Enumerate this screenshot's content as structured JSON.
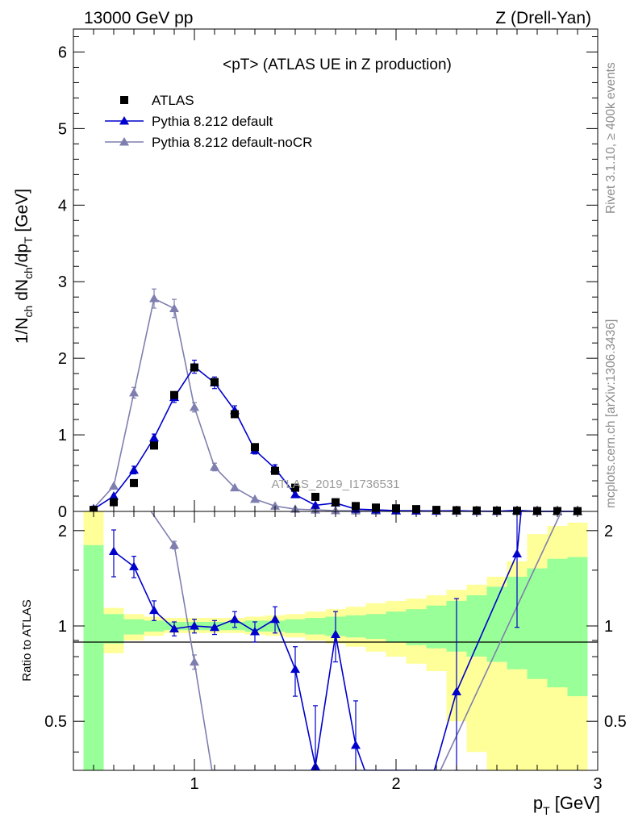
{
  "header": {
    "energy_label": "13000 GeV pp",
    "process_label": "Z (Drell-Yan)"
  },
  "side_labels": {
    "rivet": "Rivet 3.1.10, ≥ 400k events",
    "mcplots": "mcplots.cern.ch [arXiv:1306.3436]"
  },
  "chart_data": [
    {
      "type": "scatter",
      "panel": "main",
      "title": "<pT> (ATLAS UE in Z production)",
      "watermark": "ATLAS_2019_I1736531",
      "xlabel_main": "p",
      "xlabel_sub": "T",
      "xlabel_unit": " [GeV]",
      "ylabel_parts": [
        "1/N",
        "ch",
        " dN",
        "ch",
        "/dp",
        "T",
        " [GeV]"
      ],
      "xlim": [
        0.4,
        3.0
      ],
      "ylim": [
        0,
        6.3
      ],
      "xticks": [
        1,
        2,
        3
      ],
      "yticks": [
        0,
        1,
        2,
        3,
        4,
        5,
        6
      ],
      "x": [
        0.5,
        0.6,
        0.7,
        0.8,
        0.9,
        1.0,
        1.1,
        1.2,
        1.3,
        1.4,
        1.5,
        1.6,
        1.7,
        1.8,
        1.9,
        2.0,
        2.1,
        2.2,
        2.3,
        2.4,
        2.5,
        2.6,
        2.7,
        2.8,
        2.9
      ],
      "legend": [
        "ATLAS",
        "Pythia 8.212 default",
        "Pythia 8.212 default-noCR"
      ],
      "series": [
        {
          "name": "ATLAS",
          "color": "#000000",
          "marker": "square",
          "values": [
            0.02,
            0.12,
            0.37,
            0.86,
            1.52,
            1.88,
            1.69,
            1.27,
            0.84,
            0.53,
            0.31,
            0.19,
            0.12,
            0.07,
            0.05,
            0.04,
            0.03,
            0.02,
            0.015,
            0.012,
            0.01,
            0.008,
            0.006,
            0.005,
            0.004
          ]
        },
        {
          "name": "Pythia 8.212 default",
          "color": "#0000cc",
          "marker": "triangle",
          "values": [
            0.03,
            0.2,
            0.54,
            0.96,
            1.49,
            1.89,
            1.68,
            1.32,
            0.8,
            0.56,
            0.22,
            0.08,
            0.11,
            0.03,
            0.02,
            0.01,
            0.008,
            0.006,
            0.009,
            0.003,
            0.002,
            0.013,
            0.001,
            0.001,
            0.0
          ]
        },
        {
          "name": "Pythia 8.212 default-noCR",
          "color": "#7f7faf",
          "marker": "triangle",
          "values": [
            0.04,
            0.33,
            1.55,
            2.78,
            2.65,
            1.36,
            0.58,
            0.31,
            0.16,
            0.07,
            0.03,
            0.02,
            0.01,
            0.008,
            0.006,
            0.005,
            0.004,
            0.003,
            0.002,
            0.002,
            0.001,
            0.001,
            0.001,
            0.001,
            0.001
          ]
        }
      ]
    },
    {
      "type": "line",
      "panel": "ratio",
      "ylabel": "Ratio to ATLAS",
      "xlim": [
        0.4,
        3.0
      ],
      "ylim": [
        0.35,
        2.3
      ],
      "yticks": [
        0.5,
        1,
        2
      ],
      "yticklabels": [
        "0.5",
        "1",
        "2"
      ],
      "xticks": [
        1,
        2,
        3
      ],
      "band_edges": [
        0.45,
        0.55,
        0.65,
        0.75,
        0.85,
        0.95,
        1.05,
        1.15,
        1.25,
        1.35,
        1.45,
        1.55,
        1.65,
        1.75,
        1.85,
        1.95,
        2.05,
        2.15,
        2.25,
        2.35,
        2.45,
        2.55,
        2.65,
        2.75,
        2.85,
        2.95
      ],
      "band_inner_lo": [
        0.3,
        0.88,
        0.94,
        0.96,
        0.97,
        0.97,
        0.97,
        0.97,
        0.96,
        0.96,
        0.95,
        0.94,
        0.93,
        0.92,
        0.91,
        0.89,
        0.87,
        0.85,
        0.83,
        0.8,
        0.77,
        0.73,
        0.68,
        0.64,
        0.6
      ],
      "band_inner_hi": [
        1.8,
        1.09,
        1.05,
        1.04,
        1.03,
        1.03,
        1.03,
        1.03,
        1.04,
        1.04,
        1.05,
        1.06,
        1.07,
        1.08,
        1.09,
        1.11,
        1.13,
        1.16,
        1.2,
        1.25,
        1.33,
        1.43,
        1.52,
        1.63,
        1.65
      ],
      "band_outer_lo": [
        0.3,
        0.82,
        0.9,
        0.93,
        0.95,
        0.95,
        0.95,
        0.95,
        0.94,
        0.93,
        0.92,
        0.9,
        0.88,
        0.86,
        0.83,
        0.8,
        0.76,
        0.72,
        0.5,
        0.4,
        0.35,
        0.35,
        0.35,
        0.35,
        0.35
      ],
      "band_outer_hi": [
        2.3,
        1.14,
        1.09,
        1.07,
        1.06,
        1.06,
        1.06,
        1.06,
        1.07,
        1.08,
        1.09,
        1.11,
        1.13,
        1.15,
        1.18,
        1.2,
        1.22,
        1.25,
        1.3,
        1.35,
        1.43,
        1.6,
        1.95,
        2.07,
        2.12
      ],
      "series": [
        {
          "name": "Pythia 8.212 default",
          "color": "#0000cc",
          "x": [
            0.6,
            0.7,
            0.8,
            0.9,
            1.0,
            1.1,
            1.2,
            1.3,
            1.4,
            1.5,
            1.6,
            1.7,
            1.8,
            2.3,
            2.6
          ],
          "values": [
            1.72,
            1.54,
            1.12,
            0.98,
            1.0,
            0.99,
            1.05,
            0.96,
            1.05,
            0.73,
            0.36,
            0.94,
            0.42,
            0.62,
            1.69
          ],
          "err": [
            0.29,
            0.12,
            0.08,
            0.05,
            0.05,
            0.05,
            0.06,
            0.07,
            0.1,
            0.13,
            0.2,
            0.17,
            0.16,
            0.6,
            0.7
          ],
          "line_x": [
            0.6,
            0.7,
            0.8,
            0.9,
            1.0,
            1.1,
            1.2,
            1.3,
            1.4,
            1.5,
            1.6,
            1.7,
            1.8,
            1.845,
            2.19,
            2.3,
            2.6,
            2.62
          ],
          "line_y": [
            1.72,
            1.54,
            1.12,
            0.98,
            1.0,
            0.99,
            1.05,
            0.96,
            1.05,
            0.73,
            0.36,
            0.94,
            0.42,
            0.35,
            0.35,
            0.62,
            1.69,
            2.3
          ]
        },
        {
          "name": "Pythia 8.212 default-noCR",
          "color": "#7f7faf",
          "x": [
            0.9,
            1.0
          ],
          "values": [
            1.8,
            0.77
          ],
          "err": [
            0.05,
            0.04
          ],
          "line_x": [
            0.785,
            0.9,
            1.0,
            1.087,
            2.22,
            2.82
          ],
          "line_y": [
            2.3,
            1.8,
            0.77,
            0.35,
            0.35,
            2.3
          ]
        }
      ]
    }
  ]
}
